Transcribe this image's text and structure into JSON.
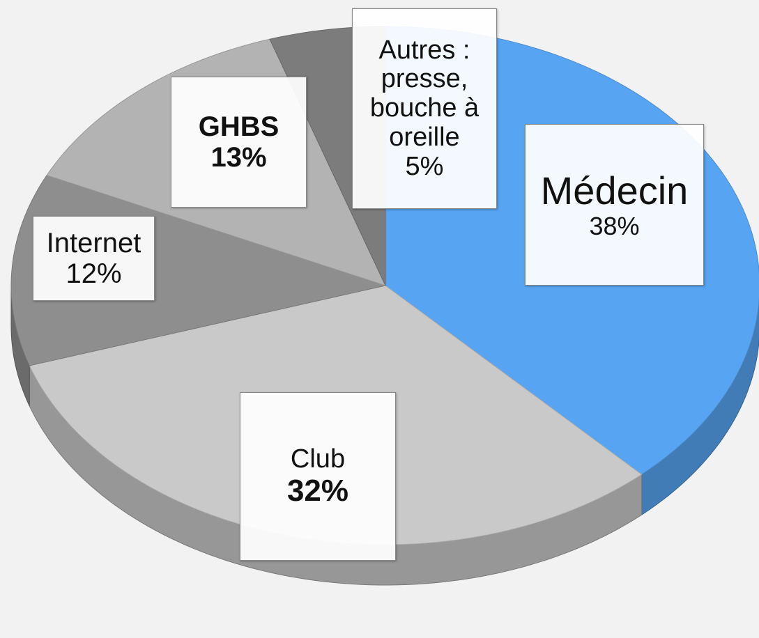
{
  "chart_data": {
    "type": "pie",
    "categories": [
      "Médecin",
      "Club",
      "Internet",
      "GHBS",
      "Autres : presse, bouche à oreille"
    ],
    "values": [
      38,
      32,
      12,
      13,
      5
    ],
    "value_labels": [
      "38%",
      "32%",
      "12%",
      "13%",
      "5%"
    ],
    "colors": [
      "#57a5f2",
      "#c9c9c9",
      "#8e8e8e",
      "#b3b3b3",
      "#7c7c7c"
    ]
  }
}
